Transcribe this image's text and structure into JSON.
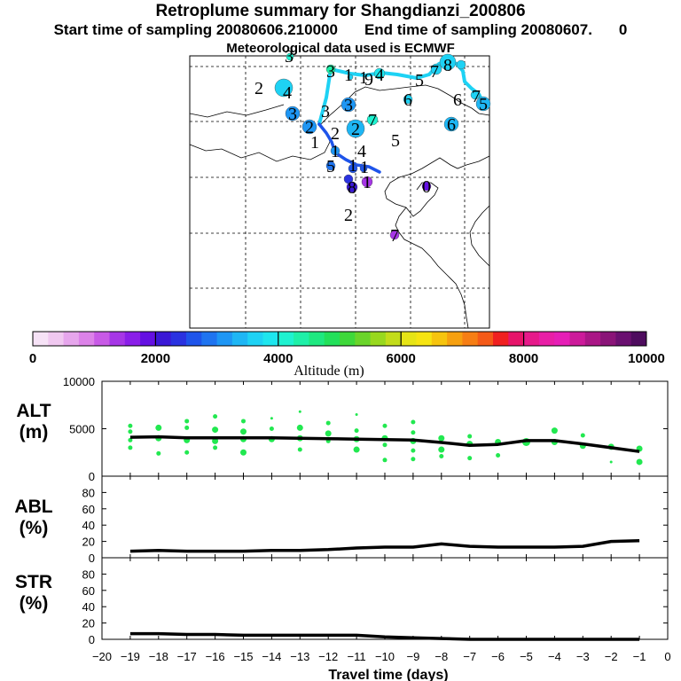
{
  "header": {
    "title": "Retroplume summary for Shangdianzi_200806",
    "start_label": "Start time of sampling 20080606.210000",
    "end_label": "End time of sampling 20080607.",
    "end_suffix": "0",
    "met_label": "Meteorological data used is ECMWF"
  },
  "colorbar": {
    "colors": [
      "#f6e2f6",
      "#f0c8f0",
      "#e6a6ec",
      "#dc82e8",
      "#c85ae6",
      "#a636e6",
      "#8a1ee8",
      "#6410e2",
      "#3a18d6",
      "#2a32e0",
      "#1e54ea",
      "#1f74f0",
      "#1e96f4",
      "#1eb6f4",
      "#1ed2f4",
      "#1ee6ee",
      "#1ef2d0",
      "#1ef0a8",
      "#1ee880",
      "#22e05a",
      "#3ed83a",
      "#6ad42a",
      "#98d81e",
      "#c2dc1a",
      "#e6e416",
      "#f6e412",
      "#f6c40e",
      "#f6a010",
      "#f67e14",
      "#f45a18",
      "#f02020",
      "#e6146a",
      "#e61a8a",
      "#e81ea6",
      "#e61eb6",
      "#cc1a9a",
      "#aa1686",
      "#8a1478",
      "#6a1070",
      "#4e0c5e"
    ],
    "ticks": [
      "0",
      "2000",
      "4000",
      "6000",
      "8000",
      "10000"
    ],
    "label": "Altitude (m)"
  },
  "map": {
    "labels": [
      {
        "t": "2",
        "x": 292,
        "y": 99
      },
      {
        "t": "3",
        "x": 326,
        "y": 63
      },
      {
        "t": "3",
        "x": 373,
        "y": 80
      },
      {
        "t": "1",
        "x": 393,
        "y": 84
      },
      {
        "t": "1",
        "x": 410,
        "y": 87
      },
      {
        "t": "9",
        "x": 416,
        "y": 89
      },
      {
        "t": "4",
        "x": 428,
        "y": 84
      },
      {
        "t": "5",
        "x": 473,
        "y": 90
      },
      {
        "t": "7",
        "x": 490,
        "y": 80
      },
      {
        "t": "8",
        "x": 505,
        "y": 73
      },
      {
        "t": "6",
        "x": 460,
        "y": 112
      },
      {
        "t": "6",
        "x": 516,
        "y": 112
      },
      {
        "t": "7",
        "x": 537,
        "y": 108
      },
      {
        "t": "5",
        "x": 545,
        "y": 117
      },
      {
        "t": "4",
        "x": 324,
        "y": 104
      },
      {
        "t": "3",
        "x": 367,
        "y": 125
      },
      {
        "t": "3",
        "x": 330,
        "y": 128
      },
      {
        "t": "3",
        "x": 393,
        "y": 118
      },
      {
        "t": "2",
        "x": 349,
        "y": 143
      },
      {
        "t": "2",
        "x": 401,
        "y": 145
      },
      {
        "t": "2",
        "x": 378,
        "y": 150
      },
      {
        "t": "7",
        "x": 420,
        "y": 135
      },
      {
        "t": "6",
        "x": 509,
        "y": 140
      },
      {
        "t": "5",
        "x": 446,
        "y": 158
      },
      {
        "t": "1",
        "x": 355,
        "y": 160
      },
      {
        "t": "1",
        "x": 378,
        "y": 170
      },
      {
        "t": "4",
        "x": 408,
        "y": 170
      },
      {
        "t": "5",
        "x": 373,
        "y": 187
      },
      {
        "t": "1",
        "x": 398,
        "y": 186
      },
      {
        "t": "1",
        "x": 411,
        "y": 188
      },
      {
        "t": "8",
        "x": 397,
        "y": 211
      },
      {
        "t": "1",
        "x": 414,
        "y": 205
      },
      {
        "t": "0",
        "x": 481,
        "y": 210
      },
      {
        "t": "2",
        "x": 393,
        "y": 242
      },
      {
        "t": "7",
        "x": 445,
        "y": 265
      }
    ],
    "markers": [
      {
        "x": 327,
        "y": 64,
        "r": 4,
        "c": "#1ef2d0"
      },
      {
        "x": 373,
        "y": 78,
        "r": 5,
        "c": "#1ef0a8"
      },
      {
        "x": 428,
        "y": 83,
        "r": 6,
        "c": "#1ee6ee"
      },
      {
        "x": 395,
        "y": 87,
        "r": 3,
        "c": "#1ed2f4"
      },
      {
        "x": 492,
        "y": 78,
        "r": 6,
        "c": "#1ed2f4"
      },
      {
        "x": 505,
        "y": 70,
        "r": 9,
        "c": "#1ed2f4"
      },
      {
        "x": 520,
        "y": 73,
        "r": 5,
        "c": "#1ed2f4"
      },
      {
        "x": 545,
        "y": 117,
        "r": 8,
        "c": "#1eb6f4"
      },
      {
        "x": 536,
        "y": 107,
        "r": 5,
        "c": "#1ed2f4"
      },
      {
        "x": 320,
        "y": 99,
        "r": 10,
        "c": "#1ed2f4"
      },
      {
        "x": 330,
        "y": 128,
        "r": 8,
        "c": "#1e96f4"
      },
      {
        "x": 393,
        "y": 118,
        "r": 8,
        "c": "#1e96f4"
      },
      {
        "x": 349,
        "y": 143,
        "r": 8,
        "c": "#1e96f4"
      },
      {
        "x": 401,
        "y": 145,
        "r": 10,
        "c": "#1eb6f4"
      },
      {
        "x": 420,
        "y": 135,
        "r": 6,
        "c": "#1ef2d0"
      },
      {
        "x": 509,
        "y": 140,
        "r": 8,
        "c": "#1eb6f4"
      },
      {
        "x": 460,
        "y": 112,
        "r": 5,
        "c": "#1ed2f4"
      },
      {
        "x": 378,
        "y": 170,
        "r": 5,
        "c": "#1e96f4"
      },
      {
        "x": 373,
        "y": 187,
        "r": 5,
        "c": "#1e74f0"
      },
      {
        "x": 398,
        "y": 190,
        "r": 5,
        "c": "#1e54ea"
      },
      {
        "x": 410,
        "y": 190,
        "r": 4,
        "c": "#1e54ea"
      },
      {
        "x": 397,
        "y": 211,
        "r": 6,
        "c": "#3a18d6"
      },
      {
        "x": 393,
        "y": 202,
        "r": 5,
        "c": "#2a32e0"
      },
      {
        "x": 414,
        "y": 205,
        "r": 6,
        "c": "#a636e6"
      },
      {
        "x": 481,
        "y": 210,
        "r": 5,
        "c": "#6410e2"
      },
      {
        "x": 445,
        "y": 265,
        "r": 5,
        "c": "#a636e6"
      }
    ]
  },
  "chart_data": [
    {
      "type": "scatter",
      "panel_label": "ALT",
      "units": "(m)",
      "ylim": [
        0,
        10000
      ],
      "yticks": [
        "10000",
        "5000",
        "0"
      ],
      "dot_color": "#22e850",
      "median_line": [
        [
          -19,
          4100
        ],
        [
          -18,
          4150
        ],
        [
          -17,
          4050
        ],
        [
          -16,
          4050
        ],
        [
          -15,
          4050
        ],
        [
          -14,
          4050
        ],
        [
          -13,
          4000
        ],
        [
          -12,
          3950
        ],
        [
          -11,
          3900
        ],
        [
          -10,
          3850
        ],
        [
          -9,
          3800
        ],
        [
          -8,
          3550
        ],
        [
          -7,
          3250
        ],
        [
          -6,
          3350
        ],
        [
          -5,
          3750
        ],
        [
          -4,
          3750
        ],
        [
          -3,
          3400
        ],
        [
          -2,
          3000
        ],
        [
          -1,
          2600
        ]
      ],
      "dots": [
        [
          -19,
          5300,
          2
        ],
        [
          -19,
          4700,
          2
        ],
        [
          -19,
          3800,
          2
        ],
        [
          -19,
          3000,
          2
        ],
        [
          -18,
          5100,
          3
        ],
        [
          -18,
          4000,
          3
        ],
        [
          -18,
          2400,
          2
        ],
        [
          -17,
          5800,
          2
        ],
        [
          -17,
          5100,
          2
        ],
        [
          -17,
          3800,
          3
        ],
        [
          -17,
          2500,
          2
        ],
        [
          -16,
          6300,
          2
        ],
        [
          -16,
          4900,
          3
        ],
        [
          -16,
          3700,
          3
        ],
        [
          -16,
          3000,
          2
        ],
        [
          -15,
          5800,
          2
        ],
        [
          -15,
          4700,
          3
        ],
        [
          -15,
          3900,
          3
        ],
        [
          -15,
          2500,
          3
        ],
        [
          -14,
          6100,
          1
        ],
        [
          -14,
          5000,
          2
        ],
        [
          -14,
          3900,
          3
        ],
        [
          -13,
          6800,
          1
        ],
        [
          -13,
          5100,
          3
        ],
        [
          -13,
          4000,
          3
        ],
        [
          -13,
          2800,
          2
        ],
        [
          -12,
          5600,
          2
        ],
        [
          -12,
          4500,
          3
        ],
        [
          -12,
          3700,
          2
        ],
        [
          -11,
          6500,
          1
        ],
        [
          -11,
          4800,
          2
        ],
        [
          -11,
          3900,
          3
        ],
        [
          -11,
          2800,
          3
        ],
        [
          -10,
          5300,
          2
        ],
        [
          -10,
          4000,
          3
        ],
        [
          -10,
          3300,
          2
        ],
        [
          -10,
          1700,
          2
        ],
        [
          -9,
          5700,
          2
        ],
        [
          -9,
          4600,
          2
        ],
        [
          -9,
          3700,
          3
        ],
        [
          -9,
          2700,
          2
        ],
        [
          -9,
          1800,
          2
        ],
        [
          -8,
          4000,
          3
        ],
        [
          -8,
          2800,
          3
        ],
        [
          -8,
          2100,
          2
        ],
        [
          -7,
          4200,
          2
        ],
        [
          -7,
          3400,
          3
        ],
        [
          -7,
          1900,
          2
        ],
        [
          -6,
          3600,
          3
        ],
        [
          -6,
          2200,
          2
        ],
        [
          -5,
          3600,
          4
        ],
        [
          -4,
          4800,
          3
        ],
        [
          -4,
          3600,
          3
        ],
        [
          -3,
          4300,
          2
        ],
        [
          -3,
          3200,
          3
        ],
        [
          -2,
          3100,
          3
        ],
        [
          -2,
          1500,
          1
        ],
        [
          -1,
          2900,
          3
        ],
        [
          -1,
          1500,
          3
        ]
      ]
    },
    {
      "type": "line",
      "panel_label": "ABL",
      "units": "(%)",
      "ylim": [
        0,
        100
      ],
      "yticks": [
        "80",
        "60",
        "40",
        "20",
        "0"
      ],
      "points": [
        [
          -19,
          8
        ],
        [
          -18,
          9
        ],
        [
          -17,
          8
        ],
        [
          -16,
          8
        ],
        [
          -15,
          8
        ],
        [
          -14,
          9
        ],
        [
          -13,
          9
        ],
        [
          -12,
          10
        ],
        [
          -11,
          12
        ],
        [
          -10,
          13
        ],
        [
          -9,
          13
        ],
        [
          -8,
          17
        ],
        [
          -7,
          14
        ],
        [
          -6,
          13
        ],
        [
          -5,
          13
        ],
        [
          -4,
          13
        ],
        [
          -3,
          14
        ],
        [
          -2,
          20
        ],
        [
          -1,
          21
        ]
      ]
    },
    {
      "type": "line",
      "panel_label": "STR",
      "units": "(%)",
      "ylim": [
        0,
        100
      ],
      "yticks": [
        "80",
        "60",
        "40",
        "20",
        "0"
      ],
      "points": [
        [
          -19,
          7
        ],
        [
          -18,
          7
        ],
        [
          -17,
          6
        ],
        [
          -16,
          6
        ],
        [
          -15,
          5
        ],
        [
          -14,
          5
        ],
        [
          -13,
          5
        ],
        [
          -12,
          5
        ],
        [
          -11,
          5
        ],
        [
          -10,
          3
        ],
        [
          -9,
          2
        ],
        [
          -8,
          1
        ],
        [
          -7,
          0
        ],
        [
          -6,
          0
        ],
        [
          -5,
          0
        ],
        [
          -4,
          0
        ],
        [
          -3,
          0
        ],
        [
          -2,
          0
        ],
        [
          -1,
          0
        ]
      ]
    },
    {
      "xlabel": "Travel time (days)",
      "xlim": [
        -20,
        0
      ],
      "xticks": [
        "−20",
        "−19",
        "−18",
        "−17",
        "−16",
        "−15",
        "−14",
        "−13",
        "−12",
        "−11",
        "−10",
        "−9",
        "−8",
        "−7",
        "−6",
        "−5",
        "−4",
        "−3",
        "−2",
        "−1",
        "0"
      ]
    }
  ]
}
